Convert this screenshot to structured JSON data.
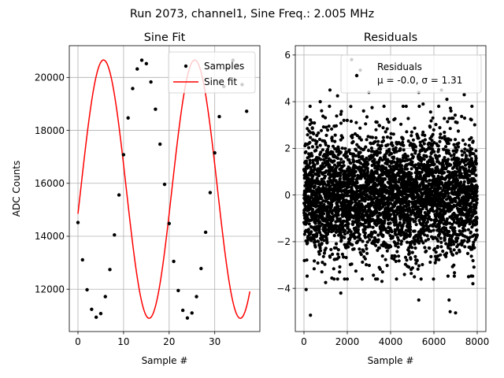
{
  "suptitle": "Run 2073, channel1, Sine Freq.: 2.005 MHz",
  "chart_data": [
    {
      "type": "line",
      "title": "Sine Fit",
      "xlabel": "Sample #",
      "ylabel": "ADC Counts",
      "xlim": [
        -1.9,
        39.9
      ],
      "ylim": [
        10400,
        21200
      ],
      "grid": true,
      "legend_position": "top-right",
      "x_ticks": [
        0,
        10,
        20,
        30
      ],
      "y_ticks": [
        12000,
        14000,
        16000,
        18000,
        20000
      ],
      "colors": {
        "samples": "#000000",
        "fit": "#ff0000"
      },
      "series": [
        {
          "name": "Samples",
          "style": "markers",
          "x": [
            0,
            1,
            2,
            3,
            4,
            5,
            6,
            7,
            8,
            9,
            10,
            11,
            12,
            13,
            14,
            15,
            16,
            17,
            18,
            19,
            20,
            21,
            22,
            23,
            24,
            25,
            26,
            27,
            28,
            29,
            30,
            31,
            32,
            33,
            34,
            35,
            36,
            37
          ],
          "y": [
            14520,
            13110,
            11980,
            11240,
            10940,
            11080,
            11720,
            12740,
            14050,
            15560,
            17080,
            18470,
            19580,
            20320,
            20650,
            20520,
            19830,
            18800,
            17480,
            15960,
            14480,
            13050,
            11950,
            11200,
            10910,
            11100,
            11720,
            12780,
            14150,
            15650,
            17150,
            18520,
            19660,
            20350,
            20650,
            20420,
            19730,
            18720
          ]
        },
        {
          "name": "Sine fit",
          "style": "line",
          "amplitude": 4880,
          "offset": 15780,
          "period": 20.0,
          "phase_deg": 349,
          "x_range": [
            0,
            37.7
          ]
        }
      ]
    },
    {
      "type": "scatter",
      "title": "Residuals",
      "xlabel": "Sample #",
      "xlim": [
        -400,
        8400
      ],
      "ylim": [
        -5.85,
        6.4
      ],
      "grid": true,
      "legend_position": "top-right",
      "x_ticks": [
        0,
        2000,
        4000,
        6000,
        8000
      ],
      "y_ticks": [
        -4,
        -2,
        0,
        2,
        4,
        6
      ],
      "n_points": 8000,
      "mean": -0.0,
      "sigma": 1.31,
      "colors": {
        "points": "#000000"
      },
      "series": [
        {
          "name": "Residuals",
          "stats_label": "μ = -0.0, σ = 1.31",
          "outliers": [
            [
              2200,
              5.8
            ],
            [
              2600,
              5.35
            ],
            [
              5300,
              4.4
            ],
            [
              6350,
              4.5
            ],
            [
              1200,
              4.5
            ],
            [
              3000,
              4.4
            ],
            [
              1550,
              4.25
            ],
            [
              750,
              4.0
            ],
            [
              6600,
              4.1
            ],
            [
              5500,
              3.9
            ],
            [
              7400,
              4.3
            ],
            [
              300,
              -5.15
            ],
            [
              6750,
              -5.0
            ],
            [
              7000,
              -5.05
            ],
            [
              1700,
              -4.2
            ],
            [
              100,
              -4.05
            ],
            [
              5300,
              -4.5
            ],
            [
              6700,
              -4.5
            ],
            [
              7800,
              -3.8
            ],
            [
              1000,
              -3.75
            ],
            [
              7600,
              -3.5
            ],
            [
              3600,
              -3.7
            ],
            [
              2000,
              -3.6
            ]
          ]
        }
      ]
    }
  ]
}
